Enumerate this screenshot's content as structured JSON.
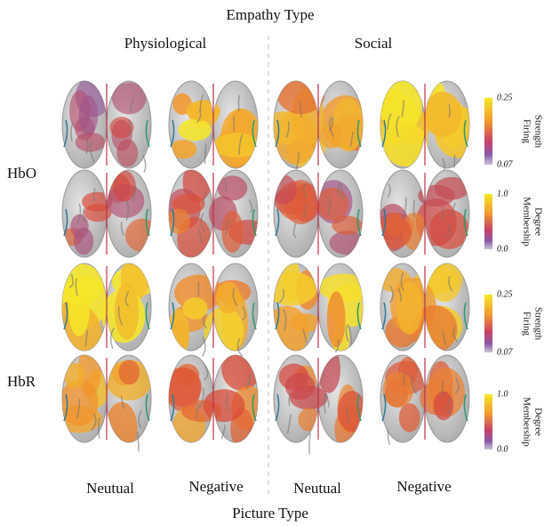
{
  "title": "Empathy Type",
  "groups": [
    "Physiological",
    "Social"
  ],
  "rows": [
    "HbO",
    "HbR"
  ],
  "columns": [
    "Neutual",
    "Negative",
    "Neutual",
    "Negative"
  ],
  "x_label": "Picture Type",
  "colorbars": [
    {
      "label": [
        "Firing",
        "Strength"
      ],
      "max": "0.25",
      "min": "0.07"
    },
    {
      "label": [
        "Membership",
        "Degree"
      ],
      "max": "1.0",
      "min": "0.0"
    },
    {
      "label": [
        "Firing",
        "Strength"
      ],
      "max": "0.25",
      "min": "0.07"
    },
    {
      "label": [
        "Membership",
        "Degree"
      ],
      "max": "1.0",
      "min": "0.0"
    }
  ]
}
